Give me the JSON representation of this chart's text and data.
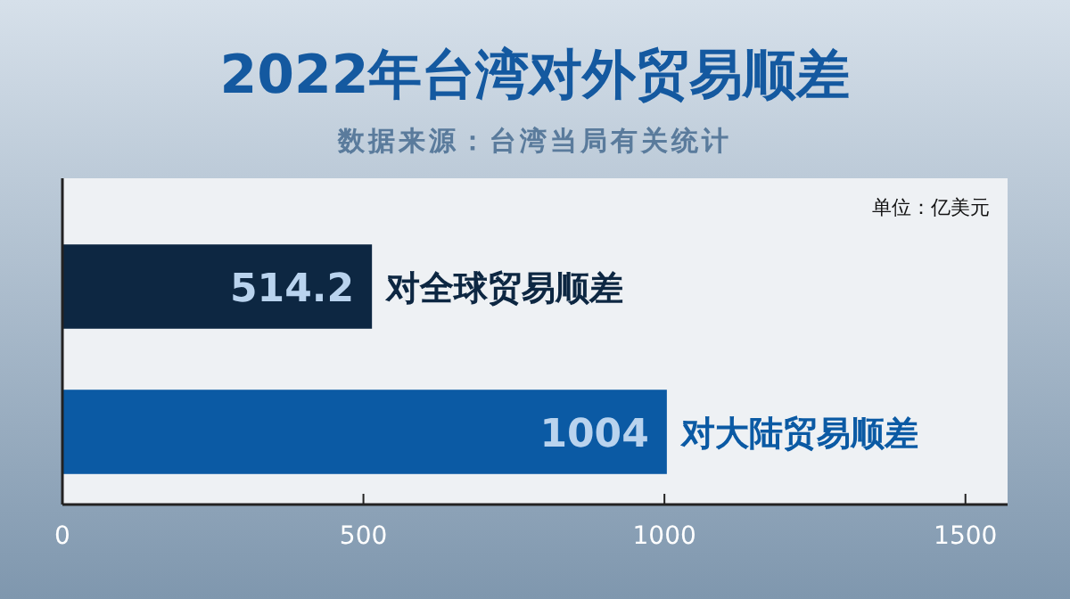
{
  "chart_data": {
    "type": "bar",
    "orientation": "horizontal",
    "title": "2022年台湾对外贸易顺差",
    "subtitle": "数据来源：台湾当局有关统计",
    "annotations": [
      "单位：亿美元"
    ],
    "categories": [
      "对全球贸易顺差",
      "对大陆贸易顺差"
    ],
    "values": [
      514.2,
      1004
    ],
    "colors": [
      "#0d2742",
      "#0b5aa4"
    ],
    "data_labels": true,
    "xlim": [
      0,
      1570
    ],
    "xticks": [
      0,
      500,
      1000,
      1500
    ]
  }
}
